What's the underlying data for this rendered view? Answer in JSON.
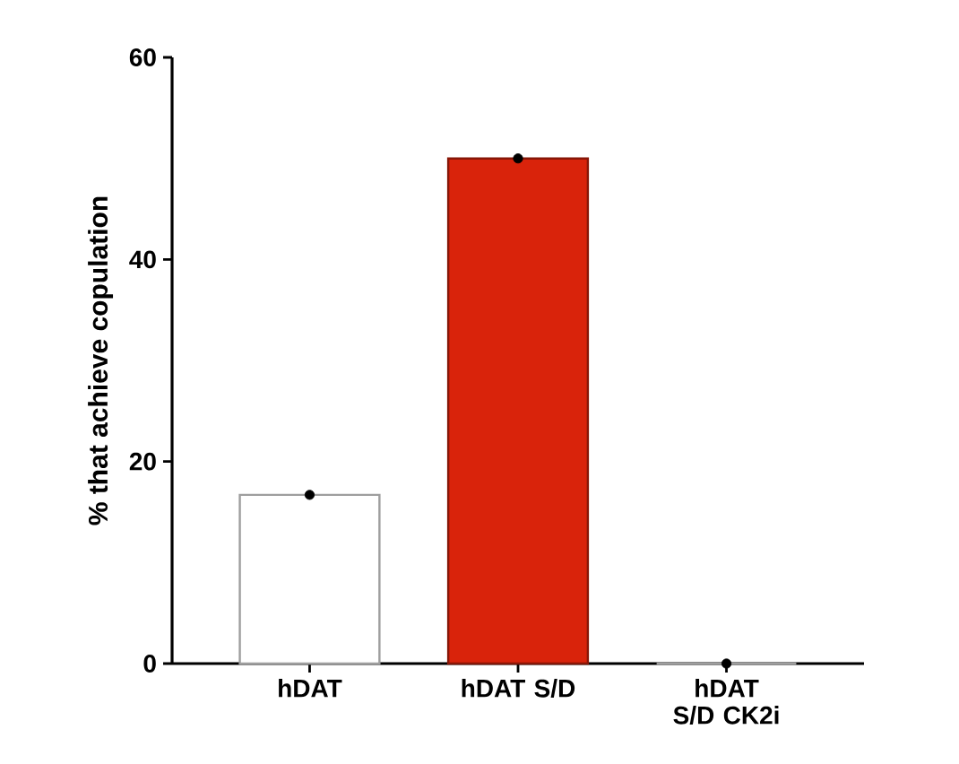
{
  "chart_data": {
    "type": "bar",
    "ylabel": "% that achieve copulation",
    "categories": [
      "hDAT",
      "hDAT S/D",
      "hDAT S/D CK2i"
    ],
    "series": [
      {
        "values": [
          16.7,
          50,
          0
        ],
        "colors": [
          "#ffffff",
          "#d9230b",
          "#ffffff"
        ]
      },
      {
        "type": "scatter",
        "x": [
          "hDAT",
          "hDAT S/D",
          "hDAT S/D CK2i"
        ],
        "values": [
          16.7,
          50,
          0
        ],
        "color": "#000000",
        "marker": "circle"
      }
    ],
    "ylim": [
      0,
      60
    ],
    "yticks": [
      0,
      20,
      40,
      60
    ]
  }
}
